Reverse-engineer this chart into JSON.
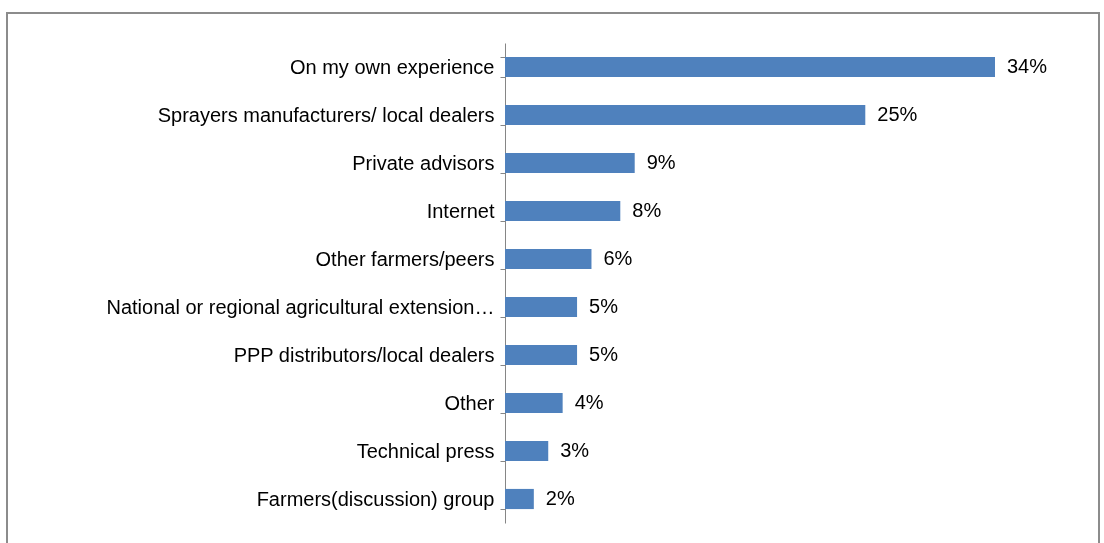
{
  "chart_data": {
    "type": "bar",
    "orientation": "horizontal",
    "categories": [
      "On my own experience",
      "Sprayers manufacturers/ local dealers",
      "Private advisors",
      "Internet",
      "Other farmers/peers",
      "National or regional agricultural extension…",
      "PPP distributors/local dealers",
      "Other",
      "Technical press",
      "Farmers(discussion) group"
    ],
    "values": [
      34,
      25,
      9,
      8,
      6,
      5,
      5,
      4,
      3,
      2
    ],
    "value_labels": [
      "34%",
      "25%",
      "9%",
      "8%",
      "6%",
      "5%",
      "5%",
      "4%",
      "3%",
      "2%"
    ],
    "color": "#4f81bd"
  }
}
